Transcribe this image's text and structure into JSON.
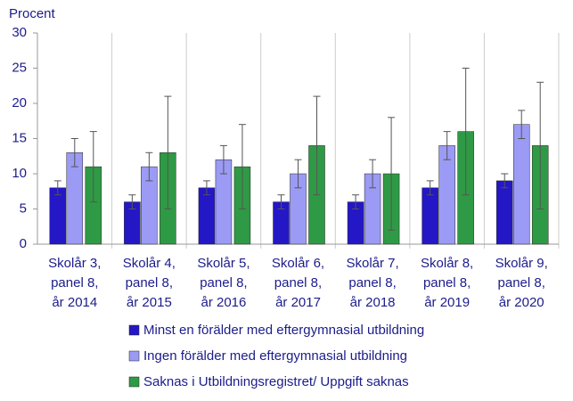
{
  "chart_data": {
    "type": "bar",
    "y_label": "Procent",
    "categories": [
      [
        "Skolår 3,",
        "panel 8,",
        "år 2014"
      ],
      [
        "Skolår 4,",
        "panel 8,",
        "år 2015"
      ],
      [
        "Skolår 5,",
        "panel 8,",
        "år 2016"
      ],
      [
        "Skolår 6,",
        "panel 8,",
        "år 2017"
      ],
      [
        "Skolår 7,",
        "panel 8,",
        "år 2018"
      ],
      [
        "Skolår 8,",
        "panel 8,",
        "år 2019"
      ],
      [
        "Skolår 9,",
        "panel 8,",
        "år 2020"
      ]
    ],
    "series": [
      {
        "name": "Minst en förälder med eftergymnasial utbildning",
        "color": "#2417c6",
        "values": [
          8,
          6,
          8,
          6,
          6,
          8,
          9
        ],
        "errors": [
          1,
          1,
          1,
          1,
          1,
          1,
          1
        ]
      },
      {
        "name": "Ingen förälder med eftergymnasial utbildning",
        "color": "#9b9bf5",
        "values": [
          13,
          11,
          12,
          10,
          10,
          14,
          17
        ],
        "errors": [
          2,
          2,
          2,
          2,
          2,
          2,
          2
        ]
      },
      {
        "name": "Saknas i Utbildningsregistret/ Uppgift saknas",
        "color": "#2f9a45",
        "values": [
          11,
          13,
          11,
          14,
          10,
          16,
          14
        ],
        "errors": [
          5,
          8,
          6,
          7,
          8,
          9,
          9
        ]
      }
    ],
    "ylim": [
      0,
      30
    ],
    "yticks": [
      0,
      5,
      10,
      15,
      20,
      25,
      30
    ]
  }
}
